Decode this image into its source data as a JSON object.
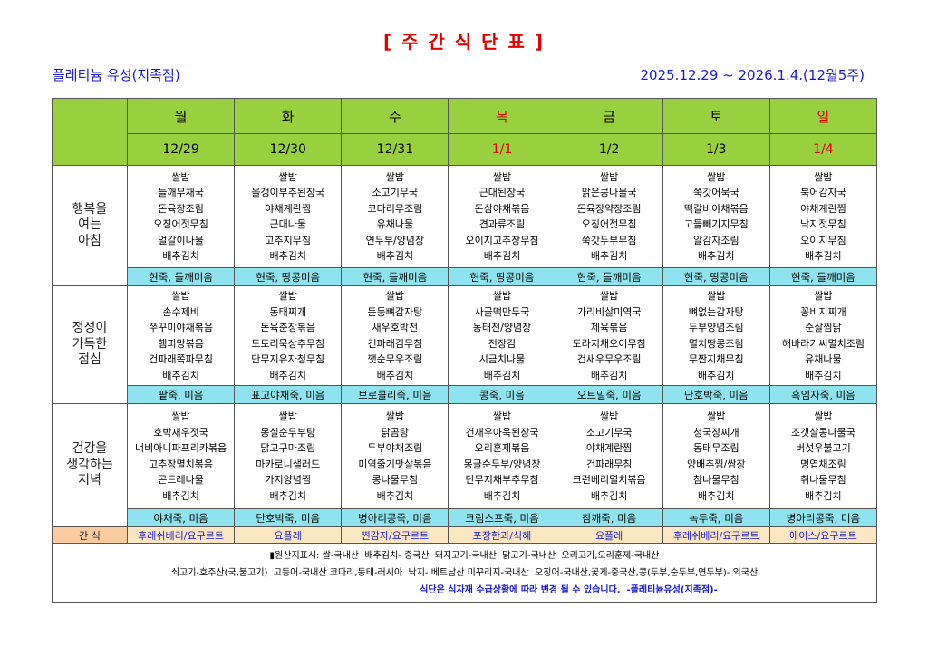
{
  "header": {
    "title": "[ 주 간 식 단 표 ]",
    "store": "플레티늄 유성(지족점)",
    "period": "2025.12.29 ~ 2026.1.4.(12월5주)"
  },
  "table": {
    "days": [
      "월",
      "화",
      "수",
      "목",
      "금",
      "토",
      "일"
    ],
    "dates": [
      "12/29",
      "12/30",
      "12/31",
      "1/1",
      "1/2",
      "1/3",
      "1/4"
    ],
    "day_colors": [
      "#000000",
      "#000000",
      "#000000",
      "#e00000",
      "#000000",
      "#000000",
      "#e00000"
    ],
    "meals": [
      {
        "label": [
          "행복을",
          "여는",
          "아침"
        ],
        "items": [
          [
            "쌀밥",
            "들깨무채국",
            "돈육장조림",
            "오징어젓무침",
            "얼갈이나물",
            "배추김치"
          ],
          [
            "쌀밥",
            "올갱이부추된장국",
            "야채계란찜",
            "근대나물",
            "고추지무침",
            "배추김치"
          ],
          [
            "쌀밥",
            "소고기무국",
            "코다리무조림",
            "유채나물",
            "연두부/양념장",
            "배추김치"
          ],
          [
            "쌀밥",
            "근대된장국",
            "돈삼야채볶음",
            "견과류조림",
            "오이지고추장무침",
            "배추김치"
          ],
          [
            "쌀밥",
            "맑은콩나물국",
            "돈육장약장조림",
            "오징어젓무침",
            "쑥갓두부무침",
            "배추김치"
          ],
          [
            "쌀밥",
            "쑥갓어묵국",
            "떡갈비야채볶음",
            "고들빼기지무침",
            "알감자조림",
            "배추김치"
          ],
          [
            "쌀밥",
            "북어감자국",
            "야채계란찜",
            "낙지젓무침",
            "오이지무침",
            "배추김치"
          ]
        ],
        "porridge": [
          "현죽, 들깨미음",
          "현죽, 땅콩미음",
          "현죽, 들깨미음",
          "현죽, 땅콩미음",
          "현죽, 들깨미음",
          "현죽, 땅콩미음",
          "현죽, 들깨미음"
        ]
      },
      {
        "label": [
          "정성이",
          "가득한",
          "점심"
        ],
        "items": [
          [
            "쌀밥",
            "손수제비",
            "쭈꾸미야채볶음",
            "햄피망볶음",
            "건파래쪽파무침",
            "배추김치"
          ],
          [
            "쌀밥",
            "동태찌개",
            "돈육춘장볶음",
            "도토리묵상추무침",
            "단무지유자청무침",
            "배추김치"
          ],
          [
            "쌀밥",
            "돈등뼈감자탕",
            "새우호박전",
            "건파래김무침",
            "깻순무우조림",
            "배추김치"
          ],
          [
            "쌀밥",
            "사골떡만두국",
            "동태전/양념장",
            "전장김",
            "시금치나물",
            "배추김치"
          ],
          [
            "쌀밥",
            "가리비살미역국",
            "제육볶음",
            "도라지채오이무침",
            "건새우무우조림",
            "배추김치"
          ],
          [
            "쌀밥",
            "뼈없는감자탕",
            "두부양념조림",
            "멸치땅콩조림",
            "무짠지채무침",
            "배추김치"
          ],
          [
            "쌀밥",
            "꽁비지찌개",
            "순살찜닭",
            "해바라기씨멸치조림",
            "유채나물",
            "배추김치"
          ]
        ],
        "porridge": [
          "팥죽, 미음",
          "표고야채죽, 미음",
          "브로콜리죽, 미음",
          "콩죽, 미음",
          "오트밀죽, 미음",
          "단호박죽, 미음",
          "흑임자죽, 미음"
        ]
      },
      {
        "label": [
          "건강을",
          "생각하는",
          "저녁"
        ],
        "items": [
          [
            "쌀밥",
            "호박새우젓국",
            "너비아니파프리카볶음",
            "고추장멸치볶음",
            "곤드레나물",
            "배추김치"
          ],
          [
            "쌀밥",
            "몽실순두부탕",
            "닭고구마조림",
            "마카로니샐러드",
            "가지양념찜",
            "배추김치"
          ],
          [
            "쌀밥",
            "닭곰탕",
            "두부야채조림",
            "미역줄기맛살볶음",
            "콩나물무침",
            "배추김치"
          ],
          [
            "쌀밥",
            "건새우아욱된장국",
            "오리훈제볶음",
            "몽글순두부/양념장",
            "단무지채부추무침",
            "배추김치"
          ],
          [
            "쌀밥",
            "소고기무국",
            "야채계란찜",
            "건파래무침",
            "크런베리멸치볶음",
            "배추김치"
          ],
          [
            "쌀밥",
            "청국장찌개",
            "동태무조림",
            "양배추찜/쌈장",
            "참나물무침",
            "배추김치"
          ],
          [
            "쌀밥",
            "조갯살콩나물국",
            "버섯우불고기",
            "명엽채조림",
            "취나물무침",
            "배추김치"
          ]
        ],
        "porridge": [
          "야채죽, 미음",
          "단호박죽, 미음",
          "병아리콩죽, 미음",
          "크림스프죽, 미음",
          "참깨죽, 미음",
          "녹두죽, 미음",
          "병아리콩죽, 미음"
        ]
      }
    ],
    "snack": {
      "label": "간 식",
      "items": [
        "후레쉬베리/요구르트",
        "요플레",
        "찐감자/요구르트",
        "포장한과/식혜",
        "요플레",
        "후레쉬베리/요구르트",
        "에이스/요구르트"
      ]
    }
  },
  "notes": {
    "origin": [
      "▮원산지표시: 쌀-국내산  배추김치- 중국산  돼지고기-국내산  닭고기-국내산  오리고기,오리훈제-국내산",
      "쇠고기-호주산(국,불고기)  고등어-국내산 코다리,동태-러시아  낙지- 베트남산 미꾸리지-국내산  오징어-국내산,꽃게-중국산,콩(두부,순두부,연두부)- 외국산"
    ],
    "notice": "식단은 식자재 수급상황에 따라 변경 될 수 있습니다.  -플레티늄유성(지족점)-"
  }
}
